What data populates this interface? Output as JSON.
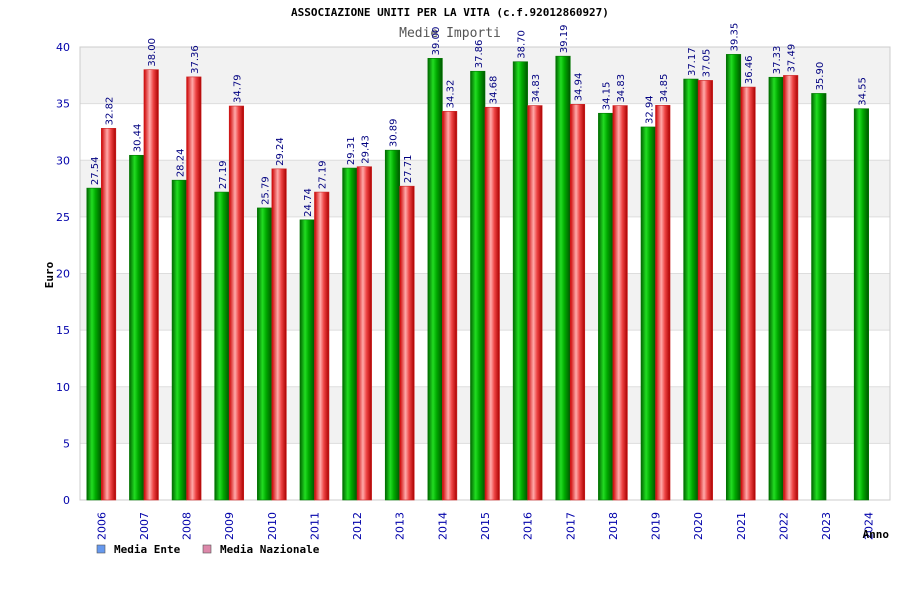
{
  "chart_data": {
    "type": "bar",
    "title": "ASSOCIAZIONE UNITI PER LA VITA (c.f.92012860927)",
    "subtitle": "Medie Importi",
    "xlabel": "Anno",
    "ylabel": "Euro",
    "ylim": [
      0,
      40
    ],
    "yticks": [
      "0",
      "5",
      "10",
      "15",
      "20",
      "25",
      "30",
      "35",
      "40"
    ],
    "categories": [
      "2006",
      "2007",
      "2008",
      "2009",
      "2010",
      "2011",
      "2012",
      "2013",
      "2014",
      "2015",
      "2016",
      "2017",
      "2018",
      "2019",
      "2020",
      "2021",
      "2022",
      "2023",
      "2024"
    ],
    "series": [
      {
        "name": "Media Ente",
        "color": "#00aa00",
        "legend_color": "#6699ee",
        "values": [
          27.54,
          30.44,
          28.24,
          27.19,
          25.79,
          24.74,
          29.31,
          30.89,
          39.0,
          37.86,
          38.7,
          39.19,
          34.15,
          32.94,
          37.17,
          39.35,
          37.33,
          35.9,
          34.55
        ],
        "labels": [
          "27.54",
          "30.44",
          "28.24",
          "27.19",
          "25.79",
          "24.74",
          "29.31",
          "30.89",
          "39.00",
          "37.86",
          "38.70",
          "39.19",
          "34.15",
          "32.94",
          "37.17",
          "39.35",
          "37.33",
          "35.90",
          "34.55"
        ]
      },
      {
        "name": "Media Nazionale",
        "color": "#ee2222",
        "legend_color": "#dd88aa",
        "values": [
          32.82,
          38.0,
          37.36,
          34.79,
          29.24,
          27.19,
          29.43,
          27.71,
          34.32,
          34.68,
          34.83,
          34.94,
          34.83,
          34.85,
          37.05,
          36.46,
          37.49,
          null,
          null
        ],
        "labels": [
          "32.82",
          "38.00",
          "37.36",
          "34.79",
          "29.24",
          "27.19",
          "29.43",
          "27.71",
          "34.32",
          "34.68",
          "34.83",
          "34.94",
          "34.83",
          "34.85",
          "37.05",
          "36.46",
          "37.49",
          null,
          null
        ]
      }
    ],
    "grid": true,
    "legend_position": "bottom-left"
  }
}
